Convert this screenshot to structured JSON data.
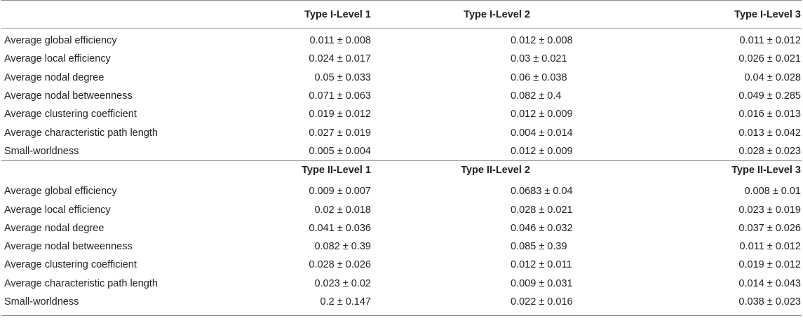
{
  "columns": {
    "metric_header": "",
    "group1": [
      "Type I-Level 1",
      "Type I-Level 2",
      "Type I-Level 3"
    ],
    "group2": [
      "Type II-Level 1",
      "Type II-Level 2",
      "Type II-Level 3"
    ]
  },
  "group1_rows": [
    {
      "metric": "Average global efficiency",
      "l1": "0.011 ± 0.008",
      "l2": "0.012 ± 0.008",
      "l3": "0.011 ± 0.012"
    },
    {
      "metric": "Average local efficiency",
      "l1": "0.024 ± 0.017",
      "l2": "0.03 ± 0.021",
      "l3": "0.026 ± 0.021"
    },
    {
      "metric": "Average nodal degree",
      "l1": "0.05 ± 0.033",
      "l2": "0.06 ± 0.038",
      "l3": "0.04 ± 0.028"
    },
    {
      "metric": "Average nodal betweenness",
      "l1": "0.071 ± 0.063",
      "l2": "0.082 ± 0.4",
      "l3": "0.049 ± 0.285"
    },
    {
      "metric": "Average clustering coefficient",
      "l1": "0.019 ± 0.012",
      "l2": "0.012 ± 0.009",
      "l3": "0.016 ± 0.013"
    },
    {
      "metric": "Average characteristic path length",
      "l1": "0.027 ± 0.019",
      "l2": "0.004 ± 0.014",
      "l3": "0.013 ± 0.042"
    },
    {
      "metric": "Small-worldness",
      "l1": "0.005 ± 0.004",
      "l2": "0.012 ± 0.009",
      "l3": "0.028 ± 0.023"
    }
  ],
  "group2_rows": [
    {
      "metric": "Average global efficiency",
      "l1": "0.009 ± 0.007",
      "l2": "0.0683 ± 0.04",
      "l3": "0.008 ± 0.01"
    },
    {
      "metric": "Average local efficiency",
      "l1": "0.02 ± 0.018",
      "l2": "0.028 ± 0.021",
      "l3": "0.023 ± 0.019"
    },
    {
      "metric": "Average nodal degree",
      "l1": "0.041 ± 0.036",
      "l2": "0.046 ± 0.032",
      "l3": "0.037 ± 0.026"
    },
    {
      "metric": "Average nodal betweenness",
      "l1": "0.082 ± 0.39",
      "l2": "0.085 ± 0.39",
      "l3": "0.011 ± 0.012"
    },
    {
      "metric": "Average clustering coefficient",
      "l1": "0.028 ± 0.026",
      "l2": "0.012 ± 0.011",
      "l3": "0.019 ± 0.012"
    },
    {
      "metric": "Average characteristic path length",
      "l1": "0.023 ± 0.02",
      "l2": "0.009 ± 0.031",
      "l3": "0.014 ± 0.043"
    },
    {
      "metric": "Small-worldness",
      "l1": "0.2 ± 0.147",
      "l2": "0.022 ± 0.016",
      "l3": "0.038 ± 0.023"
    }
  ],
  "colors": {
    "text": "#222222",
    "rule": "#8c8c8c"
  }
}
